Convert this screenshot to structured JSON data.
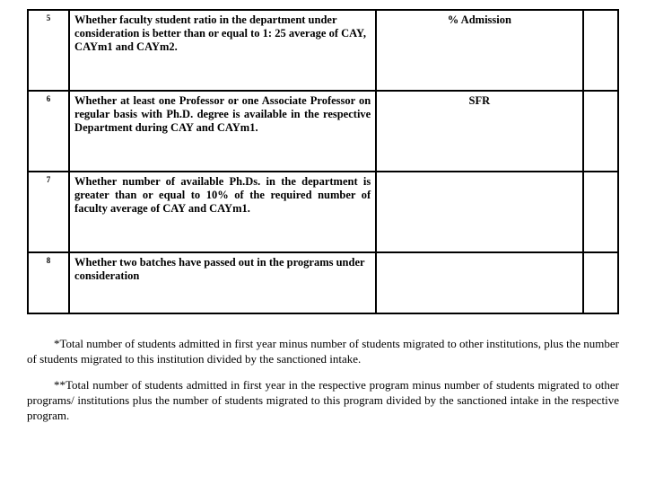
{
  "table": {
    "rows": [
      {
        "num": "5",
        "desc": "Whether faculty student ratio in the department under consideration is better than or equal to 1: 25 average of CAY, CAYm1 and CAYm2.",
        "metric": "% Admission",
        "height": "row-tall",
        "justify": false
      },
      {
        "num": "6",
        "desc": "Whether at least one Professor or one Associate Professor on regular basis with Ph.D. degree is available in the respective Department during CAY and CAYm1.",
        "metric": "SFR",
        "height": "row-tall",
        "justify": true
      },
      {
        "num": "7",
        "desc": "Whether number of available Ph.Ds. in the department is greater than or equal to 10% of the required number of faculty average of CAY and CAYm1.",
        "metric": "",
        "height": "row-tall",
        "justify": true
      },
      {
        "num": "8",
        "desc": "Whether two batches have passed out in the programs under consideration",
        "metric": "",
        "height": "row-med",
        "justify": false
      }
    ]
  },
  "footnotes": {
    "note1": "*Total number of students admitted in first year minus number of students migrated to other institutions, plus the number of students migrated to this institution divided by the sanctioned intake.",
    "note2": "**Total number of students admitted in first year in the respective program minus number of students migrated to other programs/ institutions plus the number of students migrated to this program divided by the sanctioned intake in the respective program."
  }
}
